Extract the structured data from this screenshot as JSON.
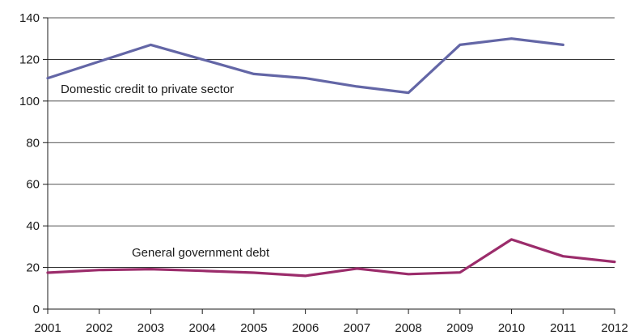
{
  "chart_data": {
    "type": "line",
    "x": [
      "2001",
      "2002",
      "2003",
      "2004",
      "2005",
      "2006",
      "2007",
      "2008",
      "2009",
      "2010",
      "2011",
      "2012"
    ],
    "ylim": [
      0,
      140
    ],
    "yticks": [
      0,
      20,
      40,
      60,
      80,
      100,
      120,
      140
    ],
    "grid": true,
    "series": [
      {
        "name": "Domestic credit to private sector",
        "color": "#6366a6",
        "values": [
          111,
          119,
          127,
          120,
          113,
          111,
          107,
          104,
          127,
          130,
          127,
          null
        ]
      },
      {
        "name": "General government debt",
        "color": "#9b2c6b",
        "values": [
          17.5,
          18.8,
          19.2,
          18.4,
          17.5,
          16.0,
          19.5,
          16.8,
          17.6,
          33.5,
          25.4,
          22.7
        ]
      }
    ]
  }
}
